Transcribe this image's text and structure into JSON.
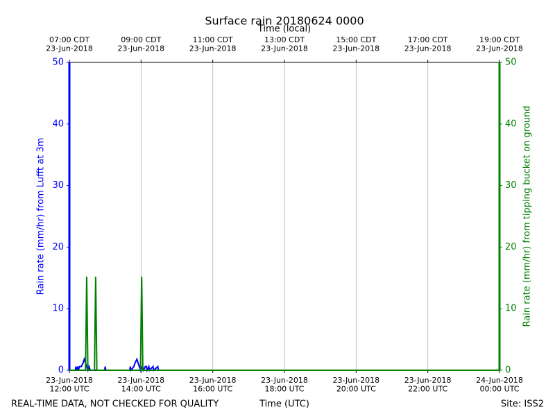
{
  "chart_data": {
    "type": "line",
    "title": "Surface rain 20180624 0000",
    "top_axis_label": "Time (local)",
    "x_label": "Time (UTC)",
    "y_label": "Rain rate (mm/hr) from Lufft at 3m",
    "y2_label": "Rain rate (mm/hr) from tipping bucket on ground",
    "footnote": "REAL-TIME DATA, NOT CHECKED FOR QUALITY",
    "site": "Site: ISS2",
    "xlim": [
      "2018-06-23 12:00",
      "2018-06-24 00:00"
    ],
    "xticks": [
      {
        "value": "2018-06-23 12:00",
        "label": "23-Jun-2018\n12:00 UTC"
      },
      {
        "value": "2018-06-23 14:00",
        "label": "23-Jun-2018\n14:00 UTC"
      },
      {
        "value": "2018-06-23 16:00",
        "label": "23-Jun-2018\n16:00 UTC"
      },
      {
        "value": "2018-06-23 18:00",
        "label": "23-Jun-2018\n18:00 UTC"
      },
      {
        "value": "2018-06-23 20:00",
        "label": "23-Jun-2018\n20:00 UTC"
      },
      {
        "value": "2018-06-23 22:00",
        "label": "23-Jun-2018\n22:00 UTC"
      },
      {
        "value": "2018-06-24 00:00",
        "label": "24-Jun-2018\n00:00 UTC"
      }
    ],
    "top_xticks": [
      {
        "value": "2018-06-23 12:00",
        "label": "07:00 CDT\n23-Jun-2018"
      },
      {
        "value": "2018-06-23 14:00",
        "label": "09:00 CDT\n23-Jun-2018"
      },
      {
        "value": "2018-06-23 16:00",
        "label": "11:00 CDT\n23-Jun-2018"
      },
      {
        "value": "2018-06-23 18:00",
        "label": "13:00 CDT\n23-Jun-2018"
      },
      {
        "value": "2018-06-23 20:00",
        "label": "15:00 CDT\n23-Jun-2018"
      },
      {
        "value": "2018-06-23 22:00",
        "label": "17:00 CDT\n23-Jun-2018"
      },
      {
        "value": "2018-06-24 00:00",
        "label": "19:00 CDT\n23-Jun-2018"
      }
    ],
    "ylim": [
      0,
      50
    ],
    "yticks": [
      0,
      10,
      20,
      30,
      40,
      50
    ],
    "y2lim": [
      0,
      50
    ],
    "y2ticks": [
      0,
      10,
      20,
      30,
      40,
      50
    ],
    "grid": true,
    "series": [
      {
        "color": "#0000ff",
        "x": [
          "2018-06-23 12:00",
          "2018-06-23 12:10",
          "2018-06-23 12:11",
          "2018-06-23 12:12",
          "2018-06-23 12:14",
          "2018-06-23 12:15",
          "2018-06-23 12:17",
          "2018-06-23 12:20",
          "2018-06-23 12:23",
          "2018-06-23 12:25",
          "2018-06-23 12:27",
          "2018-06-23 12:29",
          "2018-06-23 12:31",
          "2018-06-23 12:33",
          "2018-06-23 12:35",
          "2018-06-23 12:59",
          "2018-06-23 13:00",
          "2018-06-23 13:01",
          "2018-06-23 13:41",
          "2018-06-23 13:42",
          "2018-06-23 13:43",
          "2018-06-23 13:48",
          "2018-06-23 13:50",
          "2018-06-23 13:53",
          "2018-06-23 13:55",
          "2018-06-23 13:57",
          "2018-06-23 13:59",
          "2018-06-23 14:02",
          "2018-06-23 14:04",
          "2018-06-23 14:07",
          "2018-06-23 14:09",
          "2018-06-23 14:10",
          "2018-06-23 14:13",
          "2018-06-23 14:14",
          "2018-06-23 14:20",
          "2018-06-23 14:21",
          "2018-06-23 14:28",
          "2018-06-23 14:29",
          "2018-06-24 00:00"
        ],
        "values": [
          0,
          0,
          0.6,
          0,
          0.6,
          0,
          0.6,
          0.6,
          1.2,
          1.8,
          1.2,
          0.6,
          0,
          0.6,
          0,
          0,
          0.6,
          0,
          0,
          0.6,
          0,
          0.6,
          1.2,
          1.8,
          1.2,
          0.6,
          0,
          0.6,
          0,
          0.6,
          0.6,
          0,
          0.6,
          0,
          0.6,
          0,
          0.6,
          0,
          0
        ]
      },
      {
        "color": "#008000",
        "axis": "y2",
        "x": [
          "2018-06-23 12:00",
          "2018-06-23 12:27",
          "2018-06-23 12:29",
          "2018-06-23 12:31",
          "2018-06-23 12:42",
          "2018-06-23 12:44",
          "2018-06-23 12:46",
          "2018-06-23 13:59",
          "2018-06-23 14:01",
          "2018-06-23 14:03",
          "2018-06-24 00:00"
        ],
        "values": [
          0,
          0,
          15.2,
          0,
          0,
          15.2,
          0,
          0,
          15.2,
          0,
          0
        ]
      }
    ]
  }
}
